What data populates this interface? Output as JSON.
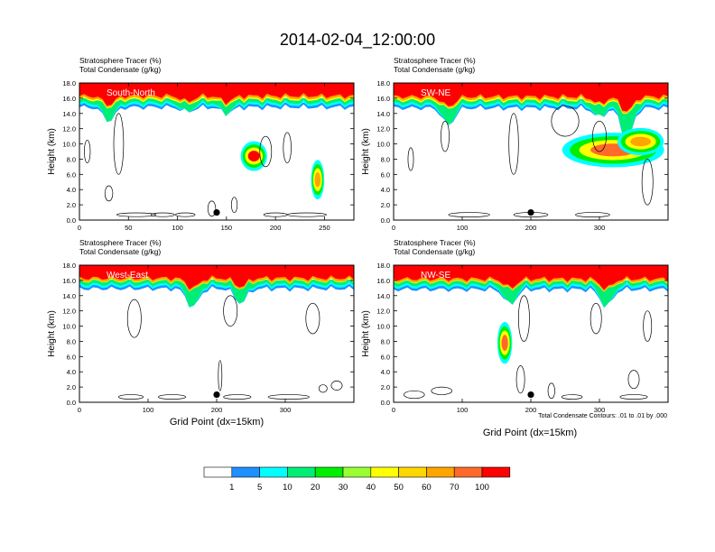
{
  "title": "2014-02-04_12:00:00",
  "footnote": "Total Condensate Contours: .01 to .01 by .000",
  "panel_label_line1": "Stratosphere Tracer   (%)",
  "panel_label_line2": "Total Condensate   (g/kg)",
  "xlabel": "Grid Point (dx=15km)",
  "ylabel": "Height (km)",
  "colorbar": {
    "labels": [
      "1",
      "5",
      "10",
      "20",
      "30",
      "40",
      "50",
      "60",
      "70",
      "100"
    ],
    "colors": [
      "#ffffff",
      "#1e90ff",
      "#00ffff",
      "#00ee76",
      "#00ee00",
      "#9aff32",
      "#ffff00",
      "#ffd700",
      "#ffa500",
      "#ff6a2a",
      "#ff0000"
    ]
  },
  "chart_data": [
    {
      "type": "heatmap",
      "name": "South-North",
      "xlim": [
        0,
        280
      ],
      "xticks": [
        0,
        50,
        100,
        150,
        200,
        250
      ],
      "ylim": [
        0,
        18
      ],
      "yticks": [
        "0.0",
        "2.0",
        "4.0",
        "6.0",
        "8.0",
        "10.0",
        "12.0",
        "14.0",
        "16.0",
        "18.0"
      ],
      "ticklabel_x": [
        "0",
        "50",
        "100",
        "150",
        "200",
        "250"
      ],
      "marker_x": 140,
      "marker_y": 1.0,
      "band_top": 18,
      "band_red_bottom": 16.3,
      "band_bottom": 15.1,
      "dips": [
        [
          30,
          13.0
        ],
        [
          110,
          14.2
        ],
        [
          150,
          14.0
        ]
      ],
      "blobs": [
        [
          178,
          8.4,
          10,
          1.0,
          "#ff0000"
        ],
        [
          243,
          5.3,
          5,
          1.4,
          "#ffa500"
        ]
      ],
      "contours": [
        [
          40,
          10,
          5,
          4
        ],
        [
          190,
          9,
          6,
          2
        ],
        [
          212,
          9.5,
          4,
          2
        ],
        [
          8,
          9,
          3,
          1.5
        ],
        [
          30,
          3.5,
          4,
          1
        ],
        [
          135,
          1.5,
          4,
          1
        ],
        [
          158,
          2,
          3,
          1
        ]
      ],
      "low_cloud": [
        [
          58,
          0.7,
          20,
          0.25
        ],
        [
          85,
          0.7,
          12,
          0.25
        ],
        [
          108,
          0.7,
          10,
          0.25
        ],
        [
          200,
          0.7,
          12,
          0.25
        ],
        [
          232,
          0.7,
          20,
          0.25
        ]
      ]
    },
    {
      "type": "heatmap",
      "name": "SW-NE",
      "xlim": [
        0,
        400
      ],
      "xticks": [
        0,
        100,
        200,
        300
      ],
      "ylim": [
        0,
        18
      ],
      "yticks": [
        "0.0",
        "2.0",
        "4.0",
        "6.0",
        "8.0",
        "10.0",
        "12.0",
        "14.0",
        "16.0",
        "18.0"
      ],
      "ticklabel_x": [
        "0",
        "100",
        "200",
        "300"
      ],
      "marker_x": 200,
      "marker_y": 1.0,
      "band_top": 18,
      "band_red_bottom": 16.2,
      "band_bottom": 15.0,
      "dips": [
        [
          80,
          12.4
        ],
        [
          300,
          13.5
        ],
        [
          340,
          10.5
        ]
      ],
      "blobs": [
        [
          320,
          9.2,
          55,
          1.2,
          "#ff6a2a"
        ],
        [
          360,
          10.3,
          25,
          0.9,
          "#ffa500"
        ]
      ],
      "contours": [
        [
          75,
          11,
          6,
          2
        ],
        [
          175,
          10,
          7,
          4
        ],
        [
          250,
          13,
          20,
          2
        ],
        [
          300,
          11,
          10,
          2
        ],
        [
          370,
          5,
          8,
          3
        ],
        [
          25,
          8,
          4,
          1.5
        ]
      ],
      "low_cloud": [
        [
          110,
          0.7,
          30,
          0.3
        ],
        [
          200,
          0.7,
          25,
          0.3
        ],
        [
          290,
          0.7,
          25,
          0.3
        ]
      ]
    },
    {
      "type": "heatmap",
      "name": "West-East",
      "xlim": [
        0,
        400
      ],
      "xticks": [
        0,
        100,
        200,
        300
      ],
      "ylim": [
        0,
        18
      ],
      "yticks": [
        "0.0",
        "2.0",
        "4.0",
        "6.0",
        "8.0",
        "10.0",
        "12.0",
        "14.0",
        "16.0",
        "18.0"
      ],
      "ticklabel_x": [
        "0",
        "100",
        "200",
        "300"
      ],
      "marker_x": 200,
      "marker_y": 1.0,
      "band_top": 18,
      "band_red_bottom": 16.3,
      "band_bottom": 15.2,
      "dips": [
        [
          165,
          12.4
        ],
        [
          235,
          13.0
        ]
      ],
      "blobs": [],
      "contours": [
        [
          80,
          11,
          10,
          2.5
        ],
        [
          220,
          12,
          10,
          2
        ],
        [
          340,
          11,
          10,
          2
        ],
        [
          205,
          3.5,
          2,
          2
        ],
        [
          375,
          2.2,
          8,
          0.6
        ],
        [
          355,
          1.8,
          6,
          0.5
        ]
      ],
      "low_cloud": [
        [
          75,
          0.7,
          18,
          0.3
        ],
        [
          135,
          0.7,
          20,
          0.3
        ],
        [
          230,
          0.7,
          20,
          0.3
        ],
        [
          305,
          0.7,
          30,
          0.3
        ]
      ]
    },
    {
      "type": "heatmap",
      "name": "NW-SE",
      "xlim": [
        0,
        400
      ],
      "xticks": [
        0,
        100,
        200,
        300
      ],
      "ylim": [
        0,
        18
      ],
      "yticks": [
        "0.0",
        "2.0",
        "4.0",
        "6.0",
        "8.0",
        "10.0",
        "12.0",
        "14.0",
        "16.0",
        "18.0"
      ],
      "ticklabel_x": [
        "0",
        "100",
        "200",
        "300"
      ],
      "marker_x": 200,
      "marker_y": 1.0,
      "band_top": 18,
      "band_red_bottom": 16.2,
      "band_bottom": 15.1,
      "dips": [
        [
          170,
          12.8
        ],
        [
          310,
          12.5
        ]
      ],
      "blobs": [
        [
          162,
          7.8,
          8,
          1.5,
          "#ff6a2a"
        ]
      ],
      "contours": [
        [
          190,
          11,
          8,
          3
        ],
        [
          295,
          11,
          8,
          2
        ],
        [
          370,
          10,
          6,
          2
        ],
        [
          185,
          3,
          6,
          1.8
        ],
        [
          350,
          3,
          8,
          1.2
        ],
        [
          230,
          1.5,
          5,
          1
        ]
      ],
      "low_cloud": [
        [
          30,
          1.0,
          15,
          0.5
        ],
        [
          70,
          1.5,
          15,
          0.5
        ],
        [
          260,
          0.7,
          15,
          0.3
        ],
        [
          350,
          0.7,
          20,
          0.3
        ]
      ]
    }
  ]
}
